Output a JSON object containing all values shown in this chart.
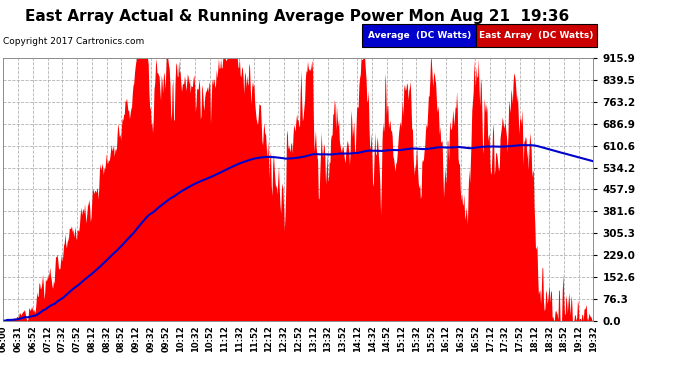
{
  "title": "East Array Actual & Running Average Power Mon Aug 21  19:36",
  "copyright": "Copyright 2017 Cartronics.com",
  "ylabel_right_ticks": [
    0.0,
    76.3,
    152.6,
    229.0,
    305.3,
    381.6,
    457.9,
    534.2,
    610.6,
    686.9,
    763.2,
    839.5,
    915.9
  ],
  "ymax": 915.9,
  "ymin": 0.0,
  "bg_color": "#ffffff",
  "plot_bg_color": "#ffffff",
  "grid_color": "#aaaaaa",
  "area_color": "#ff0000",
  "avg_line_color": "#0000cc",
  "title_fontsize": 11,
  "legend_avg_label": "Average  (DC Watts)",
  "legend_east_label": "East Array  (DC Watts)",
  "legend_avg_bg": "#0000cc",
  "legend_east_bg": "#cc0000",
  "xtick_labels": [
    "06:00",
    "06:31",
    "06:52",
    "07:12",
    "07:32",
    "07:52",
    "08:12",
    "08:32",
    "08:52",
    "09:12",
    "09:32",
    "09:52",
    "10:12",
    "10:32",
    "10:52",
    "11:12",
    "11:32",
    "11:52",
    "12:12",
    "12:32",
    "12:52",
    "13:12",
    "13:32",
    "13:52",
    "14:12",
    "14:32",
    "14:52",
    "15:12",
    "15:32",
    "15:52",
    "16:12",
    "16:32",
    "16:52",
    "17:12",
    "17:32",
    "17:52",
    "18:12",
    "18:32",
    "18:52",
    "19:12",
    "19:32"
  ]
}
